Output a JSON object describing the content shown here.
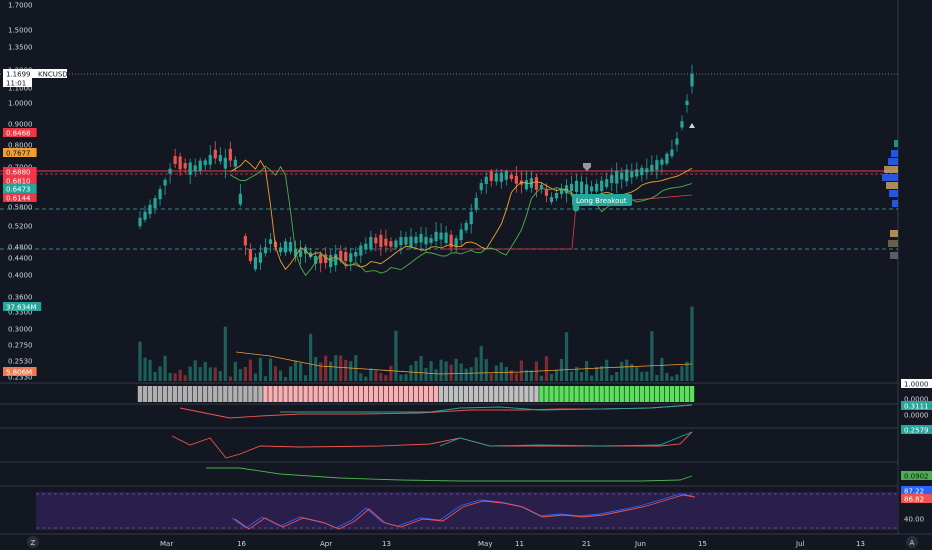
{
  "symbol": "KNCUSD",
  "last_price": "1.1699",
  "countdown": "11:01",
  "colors": {
    "up": "#26a69a",
    "down": "#ef5350",
    "volume_up": "#1d5f5a",
    "volume_down": "#7c2d33",
    "ma_orange": "#f0a030",
    "ma_green": "#4caf50",
    "resistance": "#f23645",
    "support_dash": "#2a8a8a",
    "stoch_bg": "#2a1e4a",
    "stoch_k": "#2962ff",
    "stoch_d": "#ef5350"
  },
  "price_axis": {
    "ticks": [
      "1.7000",
      "1.5000",
      "1.3500",
      "1.2000",
      "1.1000",
      "1.0000",
      "0.9000",
      "0.8000",
      "0.7000",
      "0.6000",
      "0.5800",
      "0.5200",
      "0.4800",
      "0.4400",
      "0.4000",
      "0.3600",
      "0.3300",
      "0.3000",
      "0.2750",
      "0.2530",
      "0.2330"
    ],
    "tags": [
      {
        "text": "1.1699",
        "color": "#ffffff",
        "text_color": "#131722"
      },
      {
        "text": "11:01",
        "color": "#ffffff",
        "text_color": "#131722"
      },
      {
        "text": "0.8468",
        "color": "#f23645",
        "text_color": "#ffffff"
      },
      {
        "text": "0.7677",
        "color": "#f0a030",
        "text_color": "#131722"
      },
      {
        "text": "0.6880",
        "color": "#f23645",
        "text_color": "#ffffff"
      },
      {
        "text": "0.6810",
        "color": "#f23645",
        "text_color": "#ffffff"
      },
      {
        "text": "0.6473",
        "color": "#26a69a",
        "text_color": "#ffffff"
      },
      {
        "text": "0.6144",
        "color": "#f23645",
        "text_color": "#ffffff"
      },
      {
        "text": "37.634M",
        "color": "#26a69a",
        "text_color": "#ffffff"
      },
      {
        "text": "5.806M",
        "color": "#ef7a50",
        "text_color": "#ffffff"
      }
    ]
  },
  "annotation": {
    "label": "Long Breakout"
  },
  "time_axis": {
    "labels": [
      "Mar",
      "16",
      "Apr",
      "13",
      "May",
      "11",
      "21",
      "Jun",
      "15",
      "Jul",
      "13",
      "Jul"
    ]
  },
  "indicator_panes": [
    {
      "name": "trend-strip",
      "tags": [
        {
          "text": "1.0000",
          "color": "#ffffff",
          "text_color": "#131722"
        }
      ]
    },
    {
      "name": "oscillator-1",
      "tags": [
        {
          "text": "0.0000",
          "color": "none",
          "text_color": "#d1d4dc"
        },
        {
          "text": "0.3111",
          "color": "#26a69a",
          "text_color": "#ffffff"
        },
        {
          "text": "0.0000",
          "color": "none",
          "text_color": "#d1d4dc"
        }
      ]
    },
    {
      "name": "oscillator-2",
      "tags": [
        {
          "text": "0.2579",
          "color": "#26a69a",
          "text_color": "#ffffff"
        }
      ]
    },
    {
      "name": "oscillator-3",
      "tags": [
        {
          "text": "0.0902",
          "color": "#4caf50",
          "text_color": "#131722"
        }
      ]
    },
    {
      "name": "stochastic",
      "tags": [
        {
          "text": "87.22",
          "color": "#2962ff",
          "text_color": "#ffffff"
        },
        {
          "text": "86.82",
          "color": "#ef5350",
          "text_color": "#ffffff"
        },
        {
          "text": "40.00",
          "color": "none",
          "text_color": "#d1d4dc"
        }
      ]
    }
  ],
  "corner_icons": {
    "left": "Z",
    "right": "A"
  }
}
